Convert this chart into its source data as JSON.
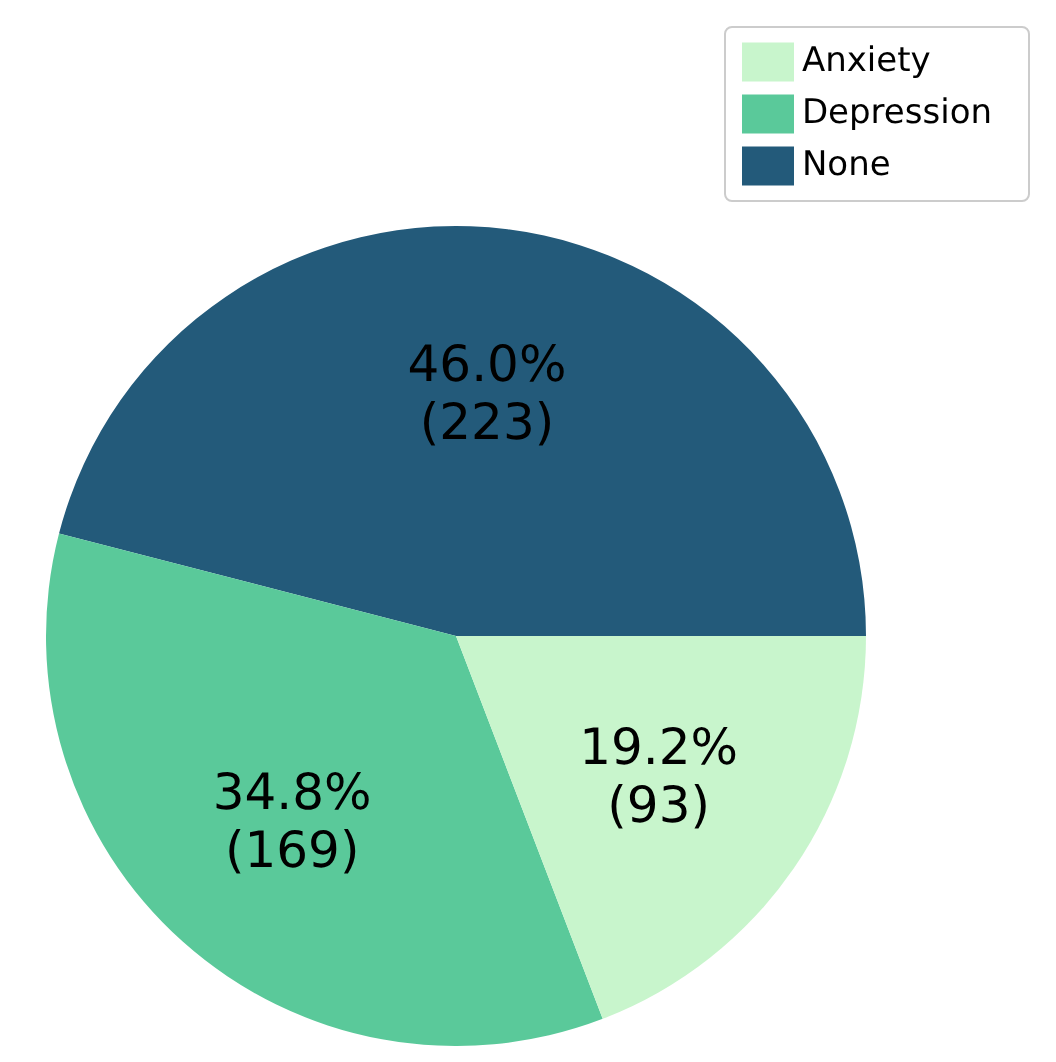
{
  "chart_data": {
    "type": "pie",
    "categories": [
      "None",
      "Depression",
      "Anxiety"
    ],
    "values": [
      223,
      169,
      93
    ],
    "colors": [
      "#235a7a",
      "#5ac99a",
      "#c8f5cc"
    ],
    "value_labels": [
      "46.0%\n(223)",
      "34.8%\n(169)",
      "19.2%\n(93)"
    ],
    "legend": "top right"
  }
}
